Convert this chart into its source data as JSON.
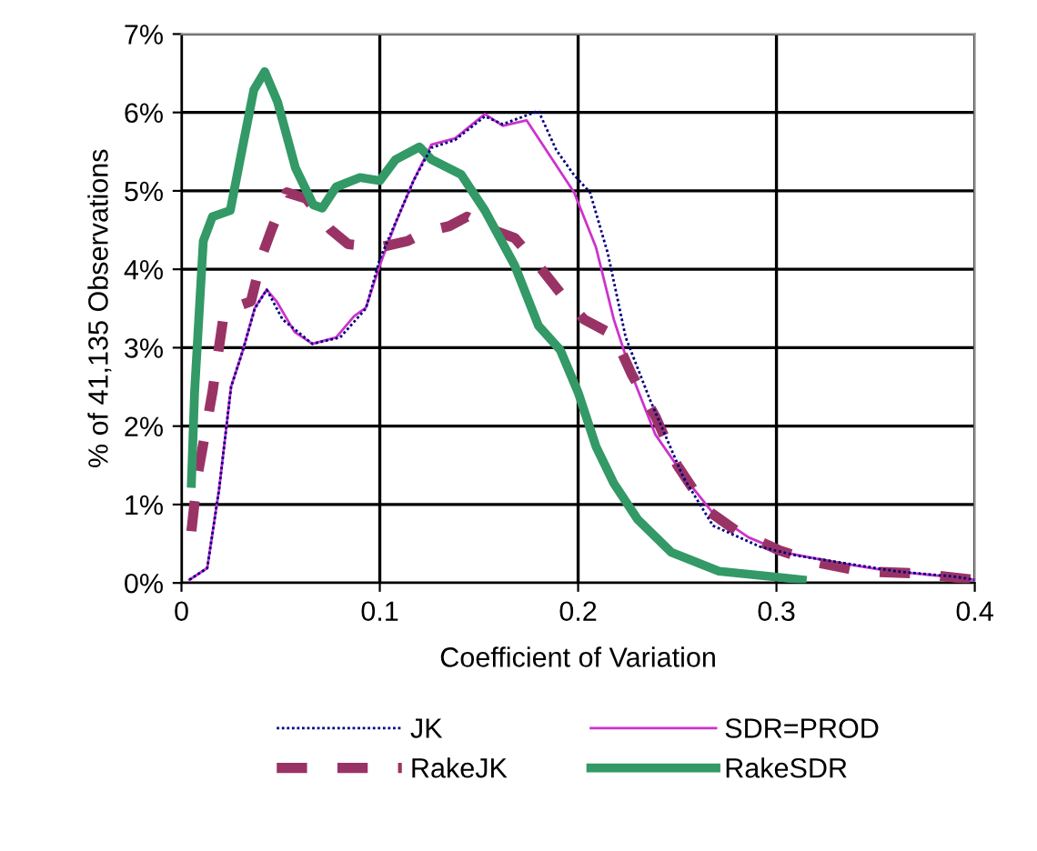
{
  "chart_data": {
    "type": "line",
    "xlabel": "Coefficient of Variation",
    "ylabel": "% of 41,135 Observations",
    "xlim": [
      0,
      0.4
    ],
    "xticks": [
      0,
      0.1,
      0.2,
      0.3,
      0.4
    ],
    "ylim": [
      0,
      7
    ],
    "yticks": [
      {
        "value": 0,
        "label": "0%"
      },
      {
        "value": 1,
        "label": "1%"
      },
      {
        "value": 2,
        "label": "2%"
      },
      {
        "value": 3,
        "label": "3%"
      },
      {
        "value": 4,
        "label": "4%"
      },
      {
        "value": 5,
        "label": "5%"
      },
      {
        "value": 6,
        "label": "6%"
      },
      {
        "value": 7,
        "label": "7%"
      }
    ],
    "grid": true,
    "legend": "bottom",
    "marker": "none",
    "series": [
      {
        "name": "JK",
        "color": "#000080",
        "line_style": "dotted",
        "x": [
          0.004,
          0.013,
          0.019,
          0.025,
          0.031,
          0.037,
          0.043,
          0.051,
          0.066,
          0.08,
          0.093,
          0.1,
          0.108,
          0.117,
          0.126,
          0.138,
          0.153,
          0.162,
          0.18,
          0.189,
          0.198,
          0.206,
          0.215,
          0.224,
          0.236,
          0.253,
          0.268,
          0.292,
          0.31,
          0.33,
          0.36,
          0.39,
          0.4
        ],
        "values": [
          0.04,
          0.19,
          1.2,
          2.5,
          2.97,
          3.5,
          3.74,
          3.36,
          3.05,
          3.13,
          3.5,
          4.13,
          4.6,
          5.13,
          5.55,
          5.65,
          5.95,
          5.85,
          6.02,
          5.52,
          5.2,
          4.98,
          4.2,
          3.13,
          2.35,
          1.35,
          0.73,
          0.46,
          0.35,
          0.27,
          0.15,
          0.08,
          0.04
        ]
      },
      {
        "name": "SDR=PROD",
        "color": "#cc33cc",
        "line_style": "solid",
        "x": [
          0.004,
          0.013,
          0.019,
          0.025,
          0.031,
          0.037,
          0.043,
          0.048,
          0.057,
          0.066,
          0.078,
          0.087,
          0.093,
          0.1,
          0.108,
          0.117,
          0.126,
          0.138,
          0.153,
          0.162,
          0.174,
          0.186,
          0.198,
          0.209,
          0.218,
          0.227,
          0.239,
          0.256,
          0.268,
          0.286,
          0.304,
          0.328,
          0.357,
          0.387,
          0.4
        ],
        "values": [
          0.04,
          0.19,
          1.2,
          2.5,
          2.97,
          3.51,
          3.74,
          3.59,
          3.2,
          3.05,
          3.13,
          3.4,
          3.51,
          4.05,
          4.59,
          5.13,
          5.59,
          5.67,
          5.98,
          5.83,
          5.9,
          5.44,
          4.98,
          4.28,
          3.36,
          2.66,
          1.89,
          1.27,
          0.89,
          0.58,
          0.39,
          0.27,
          0.15,
          0.08,
          0.04
        ]
      },
      {
        "name": "RakeJK",
        "color": "#993366",
        "line_style": "dashed",
        "x": [
          0.005,
          0.008,
          0.0156,
          0.0216,
          0.035,
          0.041,
          0.0455,
          0.053,
          0.063,
          0.075,
          0.084,
          0.1,
          0.114,
          0.123,
          0.135,
          0.144,
          0.156,
          0.168,
          0.18,
          0.191,
          0.203,
          0.218,
          0.227,
          0.239,
          0.25,
          0.265,
          0.28,
          0.301,
          0.319,
          0.342,
          0.372,
          0.4
        ],
        "values": [
          0.66,
          1.35,
          2.43,
          3.47,
          3.59,
          4.2,
          4.51,
          4.98,
          4.9,
          4.51,
          4.32,
          4.28,
          4.36,
          4.48,
          4.55,
          4.67,
          4.51,
          4.4,
          4.05,
          3.7,
          3.36,
          3.16,
          2.66,
          2.12,
          1.5,
          0.93,
          0.66,
          0.42,
          0.27,
          0.15,
          0.12,
          0.04
        ]
      },
      {
        "name": "RakeSDR",
        "color": "#339966",
        "line_style": "solid",
        "x": [
          0.005,
          0.0066,
          0.011,
          0.0156,
          0.0246,
          0.0305,
          0.0365,
          0.042,
          0.0485,
          0.0575,
          0.0665,
          0.071,
          0.078,
          0.09,
          0.1,
          0.108,
          0.12,
          0.126,
          0.141,
          0.153,
          0.168,
          0.18,
          0.191,
          0.2,
          0.209,
          0.218,
          0.23,
          0.247,
          0.271,
          0.298,
          0.313
        ],
        "values": [
          1.27,
          2.43,
          4.36,
          4.67,
          4.75,
          5.52,
          6.29,
          6.52,
          6.13,
          5.29,
          4.82,
          4.78,
          5.05,
          5.17,
          5.13,
          5.4,
          5.56,
          5.4,
          5.21,
          4.75,
          4.05,
          3.28,
          2.97,
          2.43,
          1.74,
          1.27,
          0.81,
          0.39,
          0.15,
          0.08,
          0.04
        ]
      }
    ]
  }
}
